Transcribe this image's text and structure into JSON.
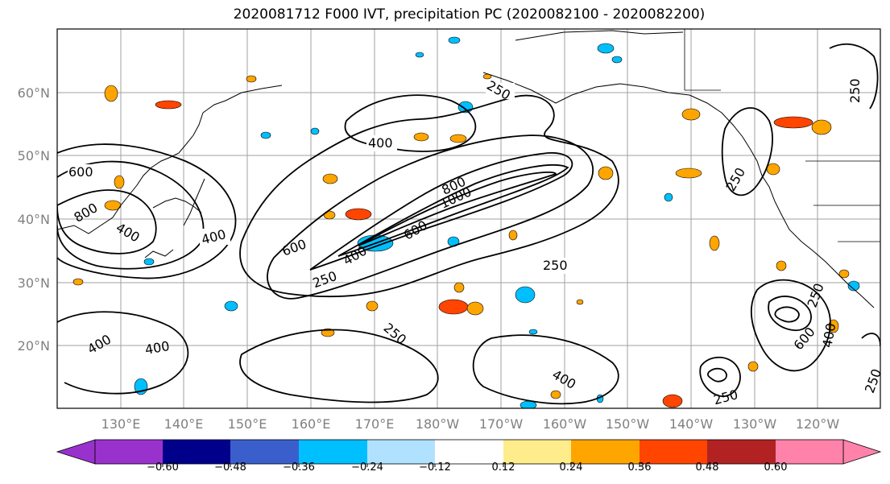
{
  "title": "2020081712 F000 IVT, precipitation PC (2020082100 - 2020082200)",
  "lat_labels": [
    "60°N",
    "50°N",
    "40°N",
    "30°N",
    "20°N"
  ],
  "lon_labels": [
    "130°E",
    "140°E",
    "150°E",
    "160°E",
    "170°E",
    "180°W",
    "170°W",
    "160°W",
    "150°W",
    "140°W",
    "130°W",
    "120°W"
  ],
  "contour_labels": [
    "250",
    "400",
    "600",
    "800",
    "1000"
  ],
  "colorbar": {
    "ticks": [
      "−0.60",
      "−0.48",
      "−0.36",
      "−0.24",
      "−0.12",
      "0.12",
      "0.24",
      "0.36",
      "0.48",
      "0.60"
    ],
    "colors": [
      "#9932cc",
      "#00008b",
      "#3a5fcd",
      "#00bfff",
      "#b0e2ff",
      "#ffffff",
      "#ffec8b",
      "#ffa500",
      "#ff4500",
      "#b22222",
      "#ff82ab"
    ]
  }
}
